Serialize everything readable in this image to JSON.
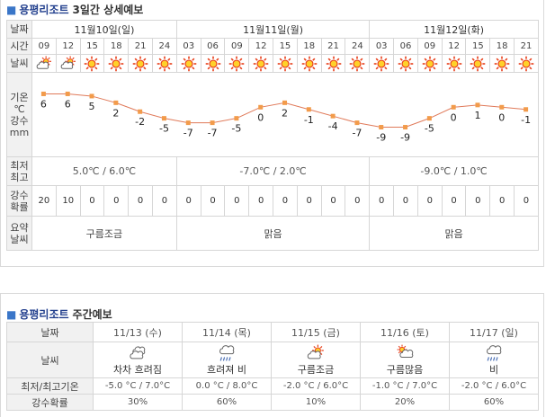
{
  "forecast3day": {
    "title_location": "용평리조트",
    "title_rest": "3일간 상세예보",
    "labels": {
      "date": "날짜",
      "time": "시간",
      "weather": "날씨",
      "temp": [
        "기온",
        "℃"
      ],
      "precip": [
        "강수",
        "mm"
      ],
      "minmax": [
        "최저",
        "최고"
      ],
      "prob": [
        "강수",
        "확률"
      ],
      "summary": [
        "요약",
        "날씨"
      ]
    },
    "days": [
      {
        "date": "11월10일(일)",
        "minmax": "5.0℃ / 6.0℃",
        "summary": "구름조금"
      },
      {
        "date": "11월11일(월)",
        "minmax": "-7.0℃ / 2.0℃",
        "summary": "맑음"
      },
      {
        "date": "11월12일(화)",
        "minmax": "-9.0℃ / 1.0℃",
        "summary": "맑음"
      }
    ],
    "hours": [
      "09",
      "12",
      "15",
      "18",
      "21",
      "24",
      "03",
      "06",
      "09",
      "12",
      "15",
      "18",
      "21",
      "24",
      "03",
      "06",
      "09",
      "12",
      "15",
      "18",
      "21"
    ],
    "weather_icons": [
      "partly-cloudy-icon",
      "partly-cloudy-icon",
      "sun-icon",
      "sun-icon",
      "sun-icon",
      "sun-icon",
      "sun-icon",
      "sun-icon",
      "sun-icon",
      "sun-icon",
      "sun-icon",
      "sun-icon",
      "sun-icon",
      "sun-icon",
      "sun-icon",
      "sun-icon",
      "sun-icon",
      "sun-icon",
      "sun-icon",
      "sun-icon",
      "sun-icon"
    ],
    "probabilities": [
      "20",
      "10",
      "0",
      "0",
      "0",
      "0",
      "0",
      "0",
      "0",
      "0",
      "0",
      "0",
      "0",
      "0",
      "0",
      "0",
      "0",
      "0",
      "0",
      "0",
      "0"
    ]
  },
  "chart_data": {
    "type": "line",
    "x": [
      "09",
      "12",
      "15",
      "18",
      "21",
      "24",
      "03",
      "06",
      "09",
      "12",
      "15",
      "18",
      "21",
      "24",
      "03",
      "06",
      "09",
      "12",
      "15",
      "18",
      "21"
    ],
    "values": [
      6,
      6,
      5,
      2,
      -2,
      -5,
      -7,
      -7,
      -5,
      0,
      2,
      -1,
      -4,
      -7,
      -9,
      -9,
      -5,
      0,
      1,
      0,
      -1
    ],
    "ylim": [
      -10,
      7
    ],
    "color": "#e07a5a",
    "marker_color": "#f29b4b"
  },
  "weekly": {
    "title_location": "용평리조트",
    "title_rest": "주간예보",
    "labels": {
      "date": "날짜",
      "weather": "날씨",
      "minmax": "최저/최고기온",
      "prob": "강수확률"
    },
    "days": [
      {
        "date": "11/13 (수)",
        "icon": "cloudy-icon",
        "weather": "차차 흐려짐",
        "minmax": "-5.0 °C / 7.0°C",
        "prob": "30%"
      },
      {
        "date": "11/14 (목)",
        "icon": "rain-icon",
        "weather": "흐려져 비",
        "minmax": "0.0 °C / 8.0°C",
        "prob": "60%"
      },
      {
        "date": "11/15 (금)",
        "icon": "partly-cloudy-icon",
        "weather": "구름조금",
        "minmax": "-2.0 °C / 6.0°C",
        "prob": "10%"
      },
      {
        "date": "11/16 (토)",
        "icon": "mostly-cloudy-icon",
        "weather": "구름많음",
        "minmax": "-1.0 °C / 7.0°C",
        "prob": "20%"
      },
      {
        "date": "11/17 (일)",
        "icon": "rain-icon",
        "weather": "비",
        "minmax": "-2.0 °C / 6.0°C",
        "prob": "60%"
      }
    ]
  }
}
